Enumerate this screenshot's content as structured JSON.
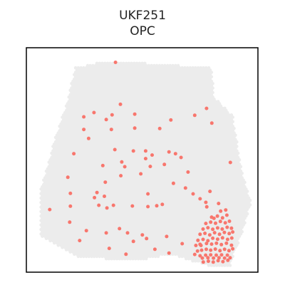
{
  "chart_data": {
    "type": "scatter",
    "title": "UKF251",
    "subtitle": "OPC",
    "xlabel": "",
    "ylabel": "",
    "grid": false,
    "legend": "none",
    "colors": {
      "background_spots": "#ececec",
      "highlighted_spots": "#f8766d",
      "frame": "#000000"
    },
    "xlim": [
      0,
      100
    ],
    "ylim": [
      0,
      100
    ],
    "series": [
      {
        "role": "highlighted",
        "points": [
          [
            38.5,
            93.5
          ],
          [
            40.6,
            74.8
          ],
          [
            29.2,
            71.1
          ],
          [
            24.8,
            69.2
          ],
          [
            34.5,
            68.0
          ],
          [
            37.0,
            70.1
          ],
          [
            46.8,
            70.4
          ],
          [
            62.4,
            67.8
          ],
          [
            72.7,
            69.9
          ],
          [
            77.8,
            73.0
          ],
          [
            80.1,
            66.4
          ],
          [
            57.6,
            64.0
          ],
          [
            46.8,
            64.2
          ],
          [
            36.7,
            63.6
          ],
          [
            24.8,
            63.6
          ],
          [
            26.9,
            59.6
          ],
          [
            38.2,
            54.6
          ],
          [
            51.5,
            54.0
          ],
          [
            46.2,
            54.0
          ],
          [
            51.5,
            50.6
          ],
          [
            54.3,
            52.2
          ],
          [
            61.6,
            53.6
          ],
          [
            64.4,
            52.8
          ],
          [
            20.5,
            52.8
          ],
          [
            33.0,
            47.5
          ],
          [
            41.2,
            49.1
          ],
          [
            42.5,
            47.0
          ],
          [
            53.5,
            47.1
          ],
          [
            59.6,
            48.0
          ],
          [
            66.8,
            51.1
          ],
          [
            69.8,
            44.6
          ],
          [
            88.1,
            48.9
          ],
          [
            17.9,
            42.3
          ],
          [
            34.1,
            40.1
          ],
          [
            40.8,
            43.0
          ],
          [
            49.4,
            43.8
          ],
          [
            63.5,
            39.6
          ],
          [
            68.7,
            37.5
          ],
          [
            19.0,
            35.1
          ],
          [
            30.5,
            35.5
          ],
          [
            29.4,
            33.2
          ],
          [
            33.7,
            33.8
          ],
          [
            31.3,
            29.8
          ],
          [
            34.8,
            28.6
          ],
          [
            37.6,
            29.8
          ],
          [
            45.8,
            29.5
          ],
          [
            52.5,
            29.2
          ],
          [
            56.3,
            29.6
          ],
          [
            58.7,
            30.2
          ],
          [
            52.5,
            34.9
          ],
          [
            10.1,
            27.9
          ],
          [
            19.0,
            29.4
          ],
          [
            18.7,
            22.3
          ],
          [
            25.9,
            18.5
          ],
          [
            34.5,
            17.5
          ],
          [
            40.2,
            19.4
          ],
          [
            50.1,
            16.6
          ],
          [
            51.9,
            15.0
          ],
          [
            46.2,
            13.7
          ],
          [
            43.7,
            17.5
          ],
          [
            35.8,
            10.6
          ],
          [
            23.0,
            14.1
          ],
          [
            43.0,
            8.0
          ],
          [
            55.5,
            10.2
          ],
          [
            60.6,
            15.9
          ],
          [
            61.6,
            8.5
          ],
          [
            67.3,
            12.7
          ],
          [
            75.0,
            12.4
          ],
          [
            72.0,
            34.9
          ],
          [
            75.0,
            32.7
          ],
          [
            77.5,
            31.1
          ],
          [
            81.0,
            24.0
          ],
          [
            83.0,
            30.6
          ],
          [
            79.3,
            36.0
          ],
          [
            77.9,
            29.1
          ],
          [
            72.7,
            7.9
          ],
          [
            75.0,
            7.3
          ],
          [
            76.0,
            6.3
          ],
          [
            77.4,
            7.6
          ],
          [
            78.4,
            6.4
          ],
          [
            79.6,
            7.7
          ],
          [
            80.8,
            6.3
          ],
          [
            82.0,
            7.6
          ],
          [
            83.2,
            6.4
          ],
          [
            84.3,
            7.7
          ],
          [
            85.6,
            6.3
          ],
          [
            86.8,
            7.6
          ],
          [
            88.0,
            6.4
          ],
          [
            73.9,
            9.4
          ],
          [
            75.7,
            9.8
          ],
          [
            77.7,
            10.2
          ],
          [
            79.6,
            9.8
          ],
          [
            81.6,
            10.3
          ],
          [
            83.6,
            9.6
          ],
          [
            85.6,
            10.2
          ],
          [
            87.5,
            9.6
          ],
          [
            89.1,
            10.4
          ],
          [
            73.2,
            11.9
          ],
          [
            75.4,
            11.9
          ],
          [
            77.8,
            12.8
          ],
          [
            80.0,
            12.5
          ],
          [
            82.1,
            12.9
          ],
          [
            84.2,
            12.3
          ],
          [
            86.4,
            12.9
          ],
          [
            88.6,
            12.0
          ],
          [
            74.1,
            14.2
          ],
          [
            76.3,
            14.6
          ],
          [
            78.4,
            14.0
          ],
          [
            80.5,
            15.1
          ],
          [
            82.6,
            14.7
          ],
          [
            84.7,
            15.3
          ],
          [
            86.9,
            14.6
          ],
          [
            88.7,
            15.2
          ],
          [
            75.0,
            16.9
          ],
          [
            77.1,
            17.3
          ],
          [
            79.2,
            16.6
          ],
          [
            81.3,
            17.6
          ],
          [
            83.4,
            16.9
          ],
          [
            85.5,
            17.7
          ],
          [
            87.6,
            17.2
          ],
          [
            89.1,
            17.9
          ],
          [
            76.3,
            19.2
          ],
          [
            78.4,
            19.8
          ],
          [
            80.5,
            19.1
          ],
          [
            82.6,
            19.7
          ],
          [
            84.6,
            19.2
          ],
          [
            86.7,
            20.0
          ],
          [
            88.6,
            19.6
          ],
          [
            77.5,
            21.7
          ],
          [
            79.6,
            22.3
          ],
          [
            81.7,
            21.8
          ],
          [
            83.8,
            22.6
          ],
          [
            85.9,
            22.0
          ],
          [
            87.7,
            22.7
          ],
          [
            80.0,
            24.5
          ],
          [
            82.5,
            25.0
          ],
          [
            84.7,
            24.2
          ],
          [
            86.6,
            25.4
          ],
          [
            83.9,
            27.2
          ],
          [
            86.1,
            27.7
          ],
          [
            76.4,
            4.5
          ],
          [
            78.6,
            4.9
          ],
          [
            80.7,
            4.5
          ],
          [
            82.8,
            5.1
          ],
          [
            84.9,
            4.7
          ],
          [
            87.0,
            5.3
          ]
        ]
      }
    ]
  }
}
